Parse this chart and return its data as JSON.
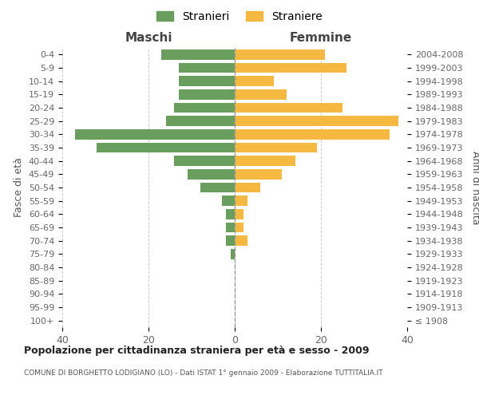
{
  "age_groups": [
    "100+",
    "95-99",
    "90-94",
    "85-89",
    "80-84",
    "75-79",
    "70-74",
    "65-69",
    "60-64",
    "55-59",
    "50-54",
    "45-49",
    "40-44",
    "35-39",
    "30-34",
    "25-29",
    "20-24",
    "15-19",
    "10-14",
    "5-9",
    "0-4"
  ],
  "birth_years": [
    "≤ 1908",
    "1909-1913",
    "1914-1918",
    "1919-1923",
    "1924-1928",
    "1929-1933",
    "1934-1938",
    "1939-1943",
    "1944-1948",
    "1949-1953",
    "1954-1958",
    "1959-1963",
    "1964-1968",
    "1969-1973",
    "1974-1978",
    "1979-1983",
    "1984-1988",
    "1989-1993",
    "1994-1998",
    "1999-2003",
    "2004-2008"
  ],
  "maschi": [
    0,
    0,
    0,
    0,
    0,
    1,
    2,
    2,
    2,
    3,
    8,
    11,
    14,
    32,
    37,
    16,
    14,
    13,
    13,
    13,
    17
  ],
  "femmine": [
    0,
    0,
    0,
    0,
    0,
    0,
    3,
    2,
    2,
    3,
    6,
    11,
    14,
    19,
    36,
    38,
    25,
    12,
    9,
    26,
    21
  ],
  "color_maschi": "#6a9e5e",
  "color_femmine": "#f5b942",
  "title": "Popolazione per cittadinanza straniera per età e sesso - 2009",
  "subtitle": "COMUNE DI BORGHETTO LODIGIANO (LO) - Dati ISTAT 1° gennaio 2009 - Elaborazione TUTTITALIA.IT",
  "label_maschi": "Maschi",
  "label_femmine": "Femmine",
  "legend_stranieri": "Stranieri",
  "legend_straniere": "Straniere",
  "ylabel_left": "Fasce di età",
  "ylabel_right": "Anni di nascita",
  "xlim": 40,
  "background_color": "#ffffff",
  "grid_color": "#cccccc"
}
